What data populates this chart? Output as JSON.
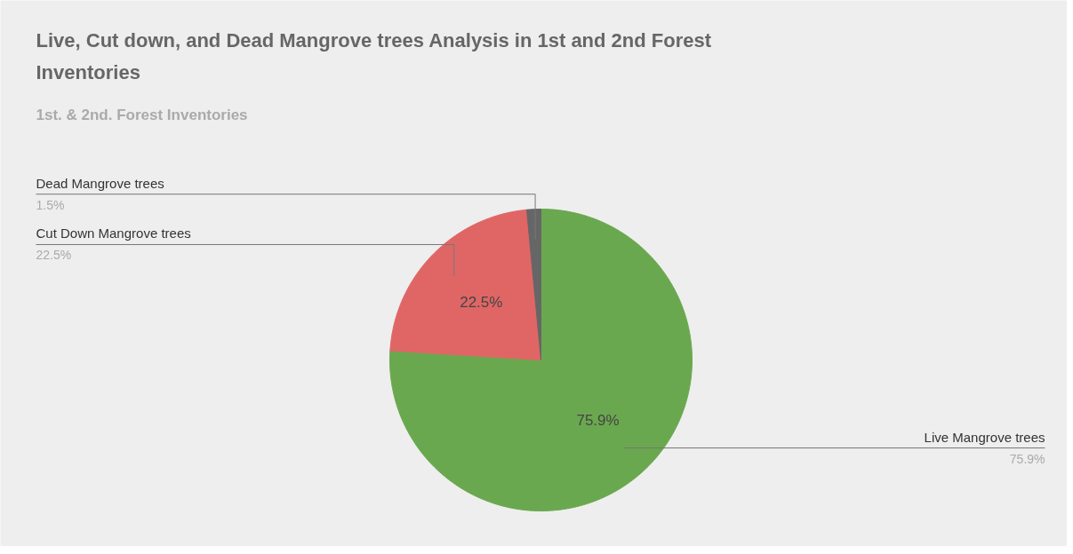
{
  "chart_data": {
    "type": "pie",
    "title": "Live, Cut down, and Dead Mangrove trees Analysis in 1st and 2nd Forest Inventories",
    "subtitle": "1st. & 2nd. Forest Inventories",
    "categories": [
      "Live Mangrove trees",
      "Cut Down Mangrove trees",
      "Dead Mangrove trees"
    ],
    "values": [
      75.9,
      22.5,
      1.5
    ],
    "colors": [
      "#6aa84f",
      "#e06666",
      "#666666"
    ],
    "value_labels": [
      "75.9%",
      "22.5%",
      "1.5%"
    ]
  }
}
